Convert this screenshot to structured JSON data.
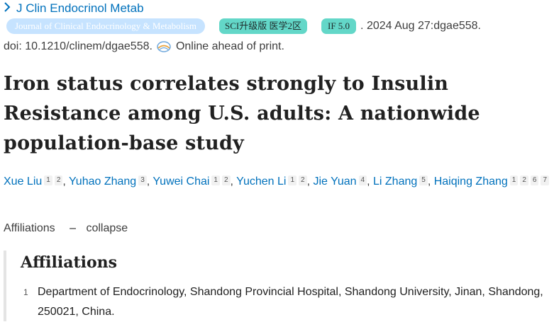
{
  "journal": {
    "abbrev": "J Clin Endocrinol Metab",
    "link_icon": "chevron-right-icon"
  },
  "badges": {
    "journal_full": "Journal of Clinical Endocrinology & Metabolism",
    "sci": "SCI升级版 医学2区",
    "impact_factor": "IF 5.0"
  },
  "pub": {
    "date": ". 2024 Aug 27:dgae558.",
    "doi": "doi: 10.1210/clinem/dgae558.",
    "status": "Online ahead of print.",
    "status_icon": "online-globe-icon"
  },
  "title": "Iron status correlates strongly to Insulin Resistance among U.S. adults: A nationwide population-base study",
  "authors": [
    {
      "name": "Xue Liu",
      "affils": [
        "1",
        "2"
      ]
    },
    {
      "name": "Yuhao Zhang",
      "affils": [
        "3"
      ]
    },
    {
      "name": "Yuwei Chai",
      "affils": [
        "1",
        "2"
      ]
    },
    {
      "name": "Yuchen Li",
      "affils": [
        "1",
        "2"
      ]
    },
    {
      "name": "Jie Yuan",
      "affils": [
        "4"
      ]
    },
    {
      "name": "Li Zhang",
      "affils": [
        "5"
      ]
    },
    {
      "name": "Haiqing Zhang",
      "affils": [
        "1",
        "2",
        "6",
        "7"
      ]
    }
  ],
  "affiliations_toggle": {
    "label": "Affiliations",
    "dash": "–",
    "action": "collapse"
  },
  "affiliations": {
    "heading": "Affiliations",
    "items": [
      {
        "num": "1",
        "text": "Department of Endocrinology, Shandong Provincial Hospital, Shandong University, Jinan, Shandong, 250021, China."
      }
    ]
  },
  "colors": {
    "link": "#0071bc",
    "badge_journal": "#c6e3ff",
    "badge_teal": "#63d7c8"
  }
}
